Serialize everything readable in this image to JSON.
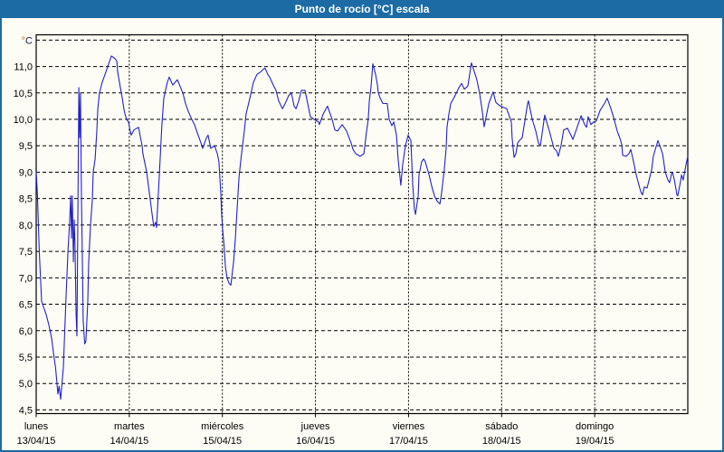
{
  "window": {
    "title": "Punto de rocío [°C] escala"
  },
  "colors": {
    "titlebar_bg": "#1d6ba4",
    "titlebar_text": "#ffffff",
    "window_bg": "#fdfdf5",
    "grid_line": "#000000",
    "series_line": "#2222cc"
  },
  "chart_data": {
    "type": "line",
    "title": "Punto de rocío [°C] escala",
    "grid": true,
    "legend": false,
    "y_axis": {
      "unit_label": "°C",
      "min": 4.5,
      "max": 11.5,
      "tick_step": 0.5,
      "display_min": 4.43,
      "display_max": 11.6,
      "tick_labels": [
        "4,5",
        "5,0",
        "5,5",
        "6,0",
        "6,5",
        "7,0",
        "7,5",
        "8,0",
        "8,5",
        "9,0",
        "9,5",
        "10,0",
        "10,5",
        "11,0"
      ]
    },
    "x_axis": {
      "total_hours": 168,
      "x_unit": "hours since 13/04/15 00:00",
      "days": [
        {
          "name": "lunes",
          "date": "13/04/15"
        },
        {
          "name": "martes",
          "date": "14/04/15"
        },
        {
          "name": "miércoles",
          "date": "15/04/15"
        },
        {
          "name": "jueves",
          "date": "16/04/15"
        },
        {
          "name": "viernes",
          "date": "17/04/15"
        },
        {
          "name": "sábado",
          "date": "18/04/15"
        },
        {
          "name": "domingo",
          "date": "19/04/15"
        }
      ]
    },
    "series": [
      {
        "name": "Punto de rocío",
        "color": "#2222cc",
        "points": [
          [
            0,
            9.0
          ],
          [
            0.3,
            8.6
          ],
          [
            0.8,
            7.5
          ],
          [
            1.4,
            6.55
          ],
          [
            1.9,
            6.45
          ],
          [
            2.6,
            6.3
          ],
          [
            3.3,
            6.1
          ],
          [
            4.0,
            5.85
          ],
          [
            4.6,
            5.5
          ],
          [
            5.0,
            5.3
          ],
          [
            5.6,
            4.8
          ],
          [
            5.9,
            4.95
          ],
          [
            6.3,
            4.7
          ],
          [
            7.0,
            5.3
          ],
          [
            7.7,
            6.65
          ],
          [
            8.2,
            7.5
          ],
          [
            8.6,
            8.05
          ],
          [
            8.9,
            8.55
          ],
          [
            9.1,
            7.75
          ],
          [
            9.3,
            8.55
          ],
          [
            9.6,
            7.3
          ],
          [
            9.8,
            8.1
          ],
          [
            10.0,
            7.6
          ],
          [
            10.3,
            6.3
          ],
          [
            10.5,
            5.9
          ],
          [
            10.7,
            7.85
          ],
          [
            11.0,
            10.6
          ],
          [
            11.2,
            9.65
          ],
          [
            11.4,
            10.5
          ],
          [
            11.7,
            8.4
          ],
          [
            11.9,
            7.35
          ],
          [
            12.1,
            6.2
          ],
          [
            12.5,
            5.75
          ],
          [
            12.8,
            5.8
          ],
          [
            13.3,
            6.55
          ],
          [
            13.5,
            7.25
          ],
          [
            14.0,
            8.0
          ],
          [
            14.5,
            8.5
          ],
          [
            14.7,
            9.0
          ],
          [
            15.2,
            9.25
          ],
          [
            15.6,
            9.75
          ],
          [
            15.9,
            10.2
          ],
          [
            16.3,
            10.5
          ],
          [
            17.0,
            10.7
          ],
          [
            18.0,
            10.9
          ],
          [
            18.7,
            11.05
          ],
          [
            19.4,
            11.2
          ],
          [
            20.3,
            11.15
          ],
          [
            20.8,
            11.1
          ],
          [
            21.0,
            10.9
          ],
          [
            21.7,
            10.6
          ],
          [
            22.2,
            10.4
          ],
          [
            22.6,
            10.2
          ],
          [
            22.9,
            10.1
          ],
          [
            23.3,
            10.0
          ],
          [
            23.8,
            9.95
          ],
          [
            24.2,
            9.8
          ],
          [
            24.5,
            9.7
          ],
          [
            25.2,
            9.8
          ],
          [
            26.4,
            9.85
          ],
          [
            27.3,
            9.5
          ],
          [
            27.5,
            9.35
          ],
          [
            28.5,
            9.0
          ],
          [
            29.2,
            8.6
          ],
          [
            29.9,
            8.2
          ],
          [
            30.3,
            7.97
          ],
          [
            30.8,
            8.05
          ],
          [
            31.0,
            7.95
          ],
          [
            31.5,
            8.6
          ],
          [
            32.0,
            9.3
          ],
          [
            32.4,
            9.9
          ],
          [
            32.9,
            10.4
          ],
          [
            33.8,
            10.7
          ],
          [
            34.3,
            10.8
          ],
          [
            35.2,
            10.65
          ],
          [
            36.4,
            10.75
          ],
          [
            37.8,
            10.5
          ],
          [
            38.5,
            10.3
          ],
          [
            39.2,
            10.15
          ],
          [
            40.1,
            10.0
          ],
          [
            40.8,
            9.9
          ],
          [
            41.5,
            9.75
          ],
          [
            42.5,
            9.55
          ],
          [
            42.9,
            9.45
          ],
          [
            43.9,
            9.65
          ],
          [
            44.3,
            9.7
          ],
          [
            45.0,
            9.45
          ],
          [
            46.0,
            9.5
          ],
          [
            46.7,
            9.35
          ],
          [
            47.1,
            9.2
          ],
          [
            47.6,
            8.6
          ],
          [
            47.8,
            8.2
          ],
          [
            48.1,
            7.9
          ],
          [
            48.5,
            7.55
          ],
          [
            48.8,
            7.2
          ],
          [
            49.2,
            7.0
          ],
          [
            49.7,
            6.9
          ],
          [
            50.2,
            6.86
          ],
          [
            50.9,
            7.3
          ],
          [
            51.3,
            7.7
          ],
          [
            51.8,
            8.3
          ],
          [
            52.3,
            8.9
          ],
          [
            52.7,
            9.2
          ],
          [
            53.2,
            9.5
          ],
          [
            53.7,
            9.8
          ],
          [
            54.1,
            10.1
          ],
          [
            55.1,
            10.4
          ],
          [
            56.0,
            10.7
          ],
          [
            56.9,
            10.85
          ],
          [
            57.9,
            10.9
          ],
          [
            58.6,
            10.95
          ],
          [
            59.0,
            10.97
          ],
          [
            59.7,
            10.85
          ],
          [
            60.2,
            10.8
          ],
          [
            61.1,
            10.65
          ],
          [
            61.8,
            10.55
          ],
          [
            62.5,
            10.35
          ],
          [
            63.5,
            10.2
          ],
          [
            64.2,
            10.3
          ],
          [
            65.1,
            10.45
          ],
          [
            65.8,
            10.5
          ],
          [
            66.5,
            10.25
          ],
          [
            67.0,
            10.2
          ],
          [
            67.7,
            10.35
          ],
          [
            68.4,
            10.55
          ],
          [
            69.3,
            10.55
          ],
          [
            70.0,
            10.3
          ],
          [
            70.7,
            10.05
          ],
          [
            71.6,
            10.0
          ],
          [
            72.8,
            9.95
          ],
          [
            73.0,
            9.9
          ],
          [
            74.0,
            10.1
          ],
          [
            75.1,
            10.25
          ],
          [
            76.3,
            10.0
          ],
          [
            77.0,
            9.8
          ],
          [
            77.7,
            9.78
          ],
          [
            78.9,
            9.9
          ],
          [
            80.0,
            9.78
          ],
          [
            81.2,
            9.55
          ],
          [
            81.7,
            9.43
          ],
          [
            82.4,
            9.35
          ],
          [
            83.5,
            9.3
          ],
          [
            84.5,
            9.35
          ],
          [
            85.2,
            9.78
          ],
          [
            85.6,
            10.0
          ],
          [
            85.9,
            10.35
          ],
          [
            86.3,
            10.6
          ],
          [
            86.8,
            11.05
          ],
          [
            87.5,
            10.85
          ],
          [
            88.0,
            10.65
          ],
          [
            88.2,
            10.5
          ],
          [
            88.7,
            10.4
          ],
          [
            89.4,
            10.3
          ],
          [
            90.5,
            10.3
          ],
          [
            91.0,
            10.0
          ],
          [
            91.7,
            9.88
          ],
          [
            92.2,
            9.95
          ],
          [
            92.9,
            9.7
          ],
          [
            93.3,
            9.25
          ],
          [
            94.0,
            8.75
          ],
          [
            94.5,
            9.15
          ],
          [
            95.2,
            9.5
          ],
          [
            95.9,
            9.7
          ],
          [
            96.6,
            9.6
          ],
          [
            97.1,
            8.75
          ],
          [
            97.5,
            8.3
          ],
          [
            97.8,
            8.2
          ],
          [
            98.5,
            8.55
          ],
          [
            98.7,
            8.95
          ],
          [
            99.4,
            9.2
          ],
          [
            99.9,
            9.25
          ],
          [
            100.3,
            9.2
          ],
          [
            101.3,
            8.95
          ],
          [
            102.0,
            8.73
          ],
          [
            102.7,
            8.55
          ],
          [
            103.4,
            8.45
          ],
          [
            104.1,
            8.4
          ],
          [
            104.5,
            8.6
          ],
          [
            105.2,
            9.05
          ],
          [
            105.7,
            9.45
          ],
          [
            105.9,
            9.85
          ],
          [
            106.4,
            10.1
          ],
          [
            106.9,
            10.3
          ],
          [
            108.0,
            10.45
          ],
          [
            109.0,
            10.6
          ],
          [
            109.7,
            10.68
          ],
          [
            110.4,
            10.57
          ],
          [
            111.3,
            10.63
          ],
          [
            112.2,
            11.07
          ],
          [
            113.2,
            10.85
          ],
          [
            113.6,
            10.75
          ],
          [
            114.3,
            10.5
          ],
          [
            115.0,
            10.15
          ],
          [
            115.5,
            9.86
          ],
          [
            116.7,
            10.3
          ],
          [
            117.8,
            10.52
          ],
          [
            118.5,
            10.32
          ],
          [
            119.5,
            10.26
          ],
          [
            120.3,
            10.23
          ],
          [
            121.3,
            10.2
          ],
          [
            121.8,
            10.1
          ],
          [
            122.5,
            9.95
          ],
          [
            122.7,
            9.65
          ],
          [
            123.2,
            9.28
          ],
          [
            123.7,
            9.35
          ],
          [
            124.1,
            9.55
          ],
          [
            124.6,
            9.6
          ],
          [
            125.3,
            9.65
          ],
          [
            126.7,
            10.3
          ],
          [
            126.9,
            10.35
          ],
          [
            127.9,
            10.0
          ],
          [
            128.8,
            9.78
          ],
          [
            129.5,
            9.55
          ],
          [
            130.0,
            9.5
          ],
          [
            131.1,
            10.08
          ],
          [
            132.3,
            9.78
          ],
          [
            133.5,
            9.45
          ],
          [
            134.2,
            9.4
          ],
          [
            134.6,
            9.3
          ],
          [
            135.3,
            9.5
          ],
          [
            136.0,
            9.8
          ],
          [
            137.0,
            9.83
          ],
          [
            138.4,
            9.62
          ],
          [
            140.5,
            10.07
          ],
          [
            141.4,
            9.9
          ],
          [
            141.9,
            9.85
          ],
          [
            142.3,
            10.05
          ],
          [
            143.0,
            9.9
          ],
          [
            143.7,
            9.95
          ],
          [
            144.4,
            9.97
          ],
          [
            145.4,
            10.17
          ],
          [
            146.5,
            10.3
          ],
          [
            147.2,
            10.4
          ],
          [
            148.2,
            10.2
          ],
          [
            148.9,
            10.03
          ],
          [
            149.8,
            9.78
          ],
          [
            150.5,
            9.64
          ],
          [
            151.0,
            9.52
          ],
          [
            151.2,
            9.32
          ],
          [
            152.1,
            9.3
          ],
          [
            152.8,
            9.35
          ],
          [
            153.3,
            9.43
          ],
          [
            154.0,
            9.2
          ],
          [
            154.7,
            8.95
          ],
          [
            155.6,
            8.7
          ],
          [
            155.9,
            8.63
          ],
          [
            156.3,
            8.57
          ],
          [
            156.8,
            8.72
          ],
          [
            157.5,
            8.7
          ],
          [
            158.7,
            9.05
          ],
          [
            159.1,
            9.3
          ],
          [
            160.3,
            9.6
          ],
          [
            161.5,
            9.35
          ],
          [
            162.2,
            9.0
          ],
          [
            162.9,
            8.85
          ],
          [
            163.3,
            8.8
          ],
          [
            163.8,
            8.97
          ],
          [
            164.0,
            9.0
          ],
          [
            164.5,
            8.87
          ],
          [
            165.2,
            8.57
          ],
          [
            165.4,
            8.55
          ],
          [
            166.1,
            8.82
          ],
          [
            166.4,
            8.95
          ],
          [
            166.8,
            8.85
          ],
          [
            167.5,
            9.13
          ],
          [
            168,
            9.3
          ]
        ]
      }
    ]
  }
}
